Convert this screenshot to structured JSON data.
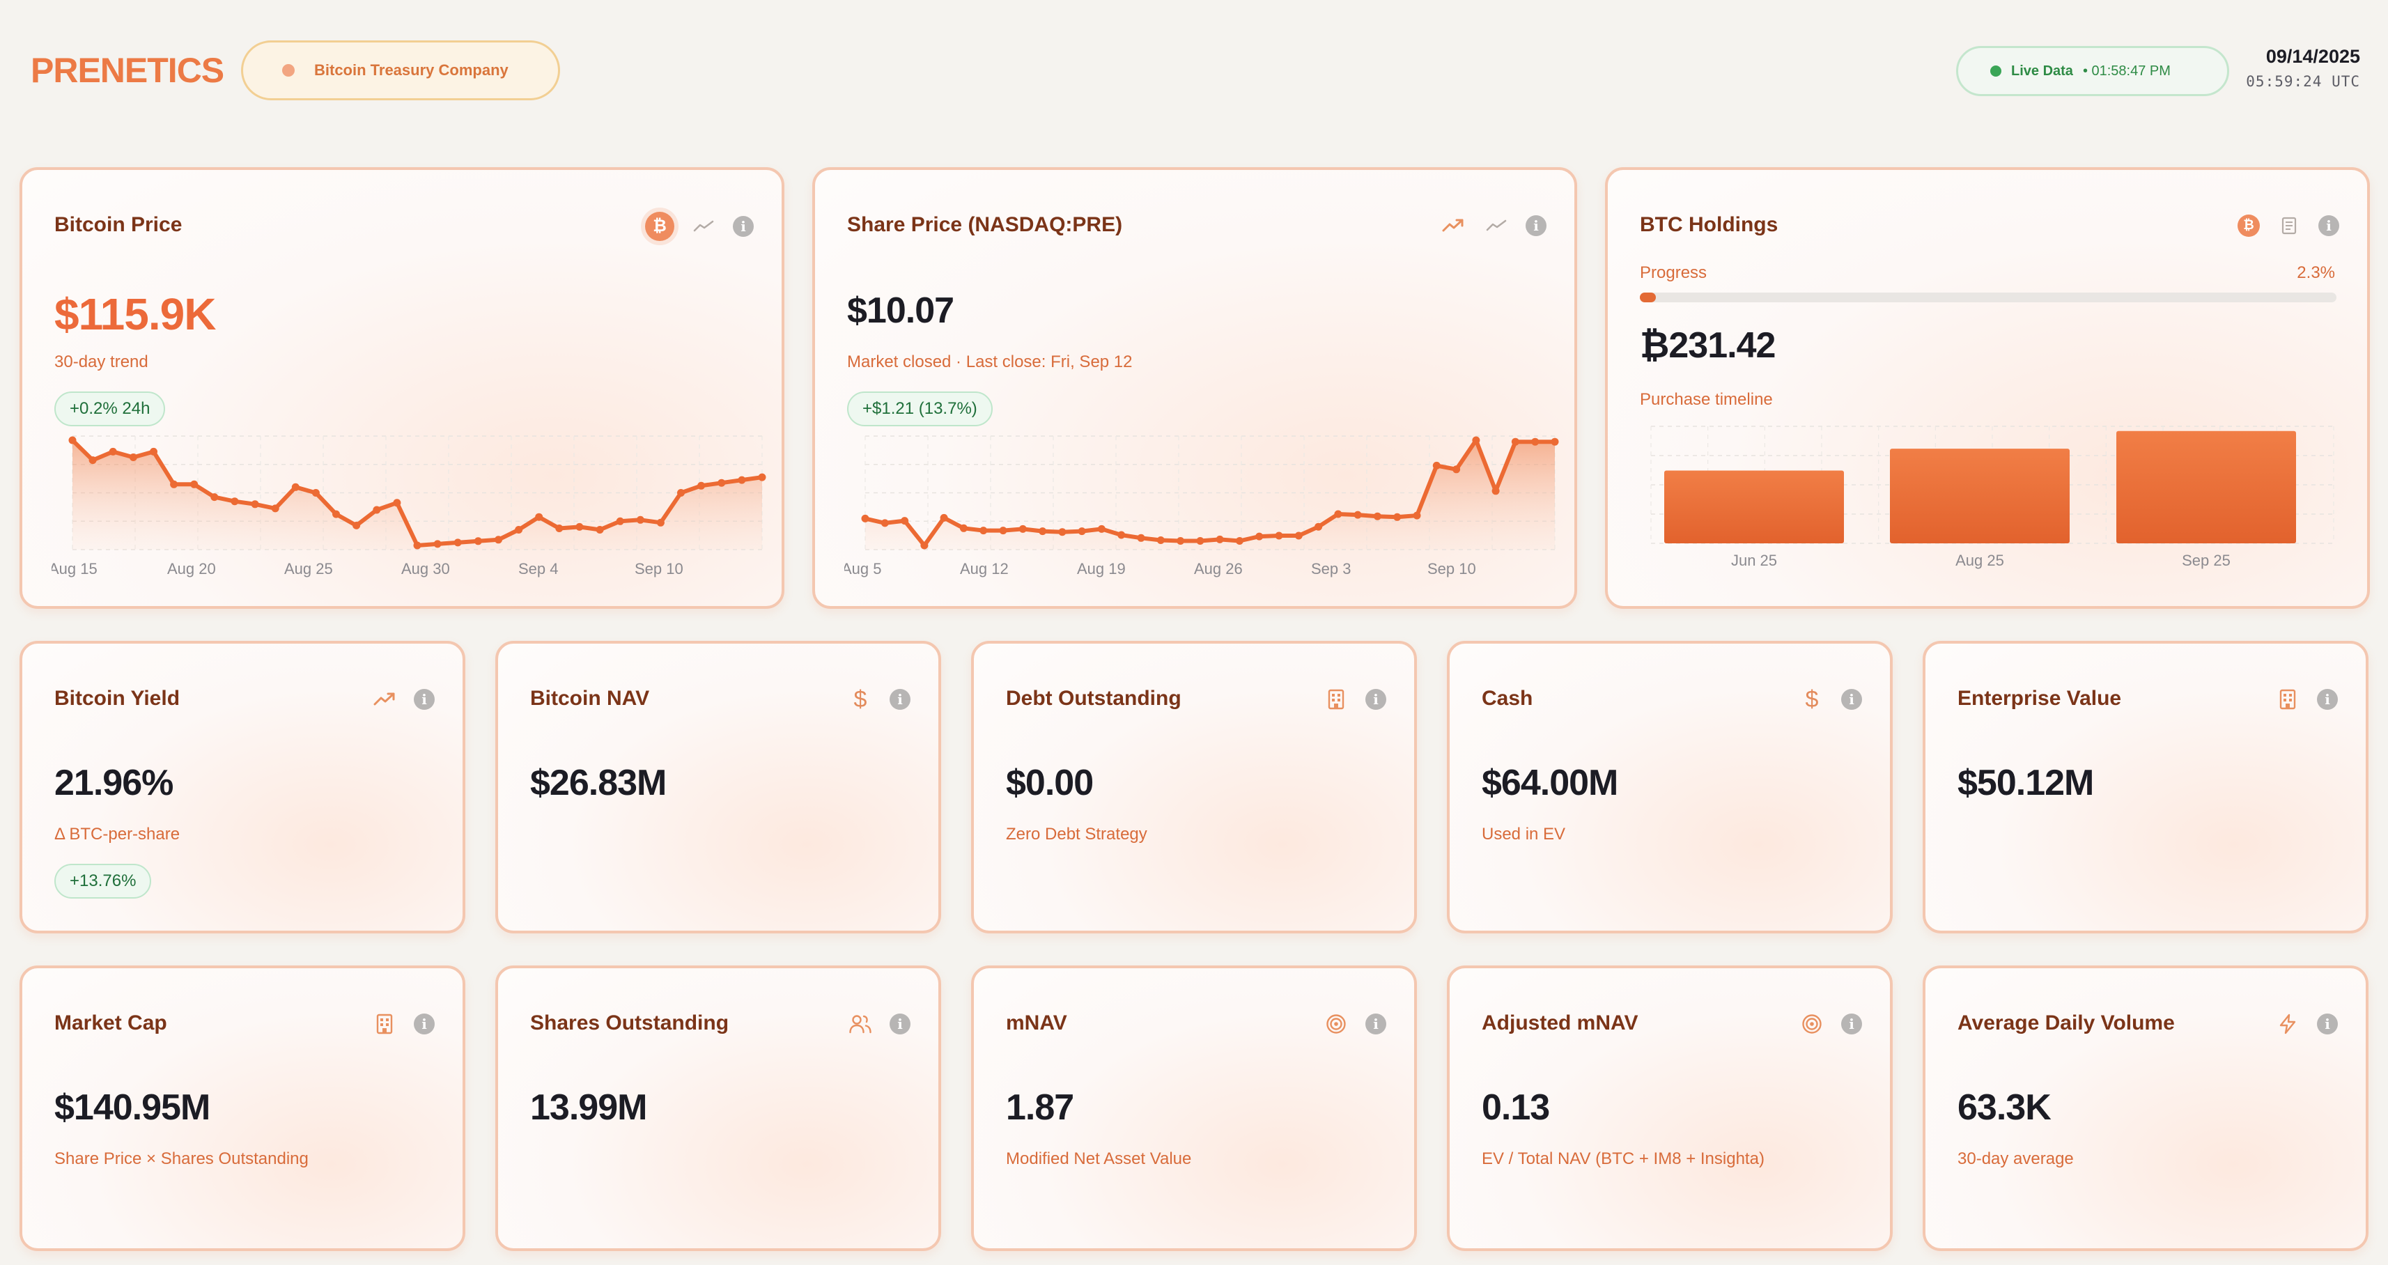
{
  "header": {
    "logo": "PRENETICS",
    "company_badge": "Bitcoin Treasury Company",
    "live_label": "Live Data",
    "live_time": "• 01:58:47 PM",
    "date": "09/14/2025",
    "time_utc": "05:59:24 UTC"
  },
  "colors": {
    "accent": "#ec7a45",
    "card_border": "#f4c7b0",
    "positive": "#2e8b45"
  },
  "cards": {
    "bitcoin_price": {
      "title": "Bitcoin Price",
      "value": "$115.9K",
      "subtitle": "30-day trend",
      "change": "+0.2% 24h",
      "icons": [
        "bitcoin-icon",
        "trend-line-icon",
        "info-icon"
      ]
    },
    "share_price": {
      "title": "Share Price (NASDAQ:PRE)",
      "value": "$10.07",
      "subtitle": "Market closed · Last close: Fri, Sep 12",
      "change": "+$1.21 (13.7%)",
      "icons": [
        "trending-up-icon",
        "trend-line-icon",
        "info-icon"
      ]
    },
    "btc_holdings": {
      "title": "BTC Holdings",
      "progress_label": "Progress",
      "progress_value": "2.3%",
      "progress": 0.023,
      "value": "₿231.42",
      "subtitle": "Purchase timeline",
      "icons": [
        "bitcoin-icon",
        "document-icon",
        "info-icon"
      ]
    },
    "bitcoin_yield": {
      "title": "Bitcoin Yield",
      "value": "21.96%",
      "subtitle": "Δ BTC-per-share",
      "change": "+13.76%"
    },
    "bitcoin_nav": {
      "title": "Bitcoin NAV",
      "value": "$26.83M"
    },
    "debt_outstanding": {
      "title": "Debt Outstanding",
      "value": "$0.00",
      "subtitle": "Zero Debt Strategy"
    },
    "cash": {
      "title": "Cash",
      "value": "$64.00M",
      "subtitle": "Used in EV"
    },
    "enterprise_value": {
      "title": "Enterprise Value",
      "value": "$50.12M"
    },
    "market_cap": {
      "title": "Market Cap",
      "value": "$140.95M",
      "subtitle": "Share Price × Shares Outstanding"
    },
    "shares_outstanding": {
      "title": "Shares Outstanding",
      "value": "13.99M"
    },
    "mnav": {
      "title": "mNAV",
      "value": "1.87",
      "subtitle": "Modified Net Asset Value"
    },
    "adjusted_mnav": {
      "title": "Adjusted mNAV",
      "value": "0.13",
      "subtitle": "EV / Total NAV (BTC + IM8 + Insighta)"
    },
    "avg_daily_volume": {
      "title": "Average Daily Volume",
      "value": "63.3K",
      "subtitle": "30-day average"
    }
  },
  "chart_data": [
    {
      "type": "area",
      "x_ticks": [
        "Aug 15",
        "Aug 20",
        "Aug 25",
        "Aug 30",
        "Sep 4",
        "Sep 10"
      ],
      "values": [
        119.0,
        117.6,
        118.2,
        117.8,
        118.2,
        115.9,
        115.9,
        115.0,
        114.7,
        114.5,
        114.2,
        115.7,
        115.3,
        113.8,
        113.0,
        114.1,
        114.6,
        111.6,
        111.7,
        111.8,
        111.9,
        112.0,
        112.7,
        113.6,
        112.8,
        112.9,
        112.7,
        113.3,
        113.4,
        113.2,
        115.3,
        115.8,
        116.0,
        116.2,
        116.4
      ]
    },
    {
      "type": "area",
      "x_ticks": [
        "Aug 5",
        "Aug 12",
        "Aug 19",
        "Aug 26",
        "Sep 3",
        "Sep 10"
      ],
      "values": [
        8.71,
        8.65,
        8.68,
        8.35,
        8.72,
        8.58,
        8.55,
        8.55,
        8.57,
        8.54,
        8.53,
        8.54,
        8.57,
        8.49,
        8.45,
        8.42,
        8.41,
        8.41,
        8.43,
        8.41,
        8.47,
        8.48,
        8.48,
        8.6,
        8.77,
        8.76,
        8.74,
        8.73,
        8.75,
        9.42,
        9.37,
        9.76,
        9.08,
        9.74,
        9.74,
        9.74
      ]
    },
    {
      "type": "bar",
      "categories": [
        "Jun 25",
        "Aug 25",
        "Sep 25"
      ],
      "values": [
        150,
        195,
        231.42
      ]
    }
  ]
}
